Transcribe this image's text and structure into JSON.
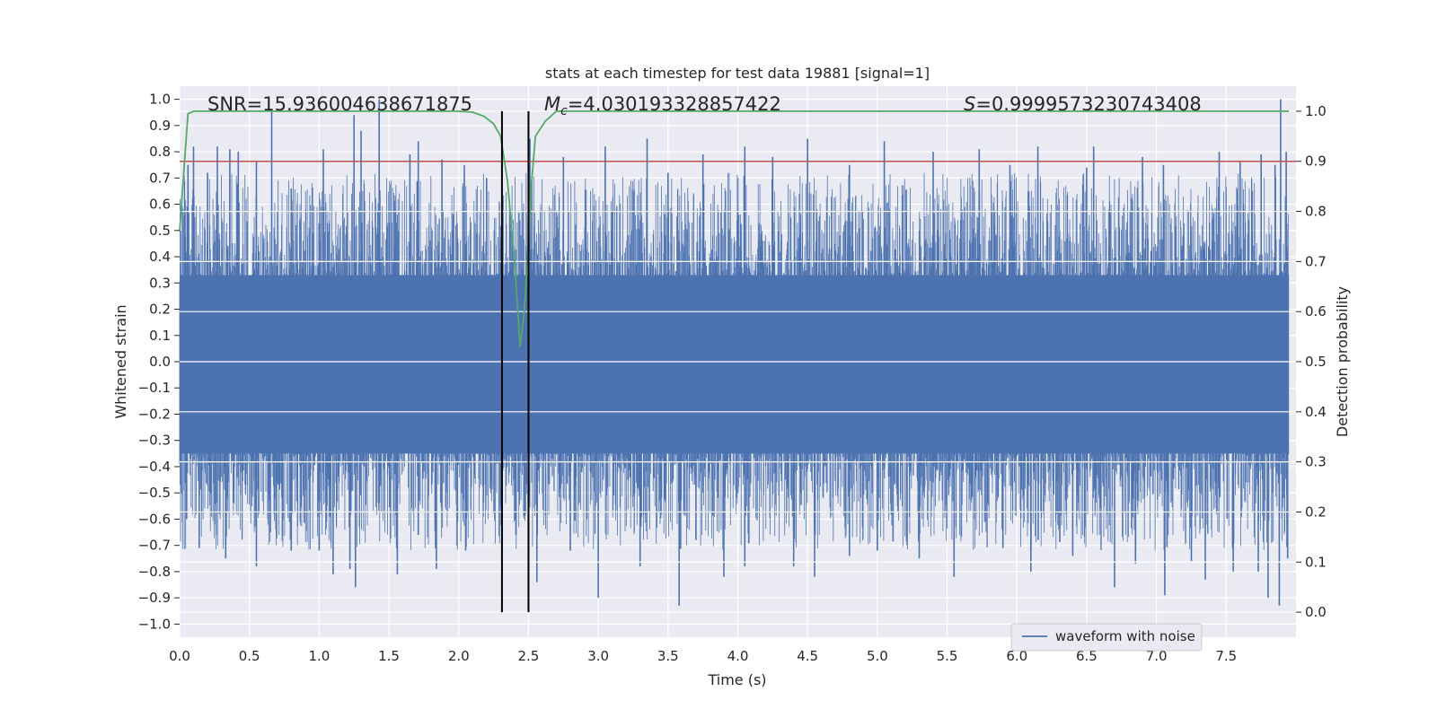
{
  "chart_data": {
    "type": "line",
    "title": "stats at each timestep for test data 19881 [signal=1]",
    "xlabel": "Time (s)",
    "ylabel": "Whitened strain",
    "y2label": "Detection probability",
    "xlim": [
      0.0,
      8.0
    ],
    "ylim": [
      -1.05,
      1.05
    ],
    "y2lim": [
      -0.05,
      1.05
    ],
    "x_ticks": [
      "0.0",
      "0.5",
      "1.0",
      "1.5",
      "2.0",
      "2.5",
      "3.0",
      "3.5",
      "4.0",
      "4.5",
      "5.0",
      "5.5",
      "6.0",
      "6.5",
      "7.0",
      "7.5"
    ],
    "y_ticks": [
      "1.0",
      "0.9",
      "0.8",
      "0.7",
      "0.6",
      "0.5",
      "0.4",
      "0.3",
      "0.2",
      "0.1",
      "0.0",
      "−0.1",
      "−0.2",
      "−0.3",
      "−0.4",
      "−0.5",
      "−0.6",
      "−0.7",
      "−0.8",
      "−0.9",
      "−1.0"
    ],
    "y2_ticks": [
      "1.0",
      "0.9",
      "0.8",
      "0.7",
      "0.6",
      "0.5",
      "0.4",
      "0.3",
      "0.2",
      "0.1",
      "0.0"
    ],
    "grid": true,
    "legend_location": "lower right",
    "annotations": {
      "snr": "SNR=15.936004638671875",
      "mc_symbol": "M",
      "mc_subscript": "c",
      "mc_value": "=4.030193328857422",
      "s_symbol": "S",
      "s_value": "=0.9999573230743408"
    },
    "series": [
      {
        "name": "waveform with noise",
        "color": "#4c72b0",
        "description_of_envelope": "dense noise, max near 1.0, min near -0.93",
        "upper_peaks": [
          [
            0.06,
            0.75
          ],
          [
            0.1,
            0.82
          ],
          [
            0.2,
            0.72
          ],
          [
            0.27,
            0.82
          ],
          [
            0.36,
            0.81
          ],
          [
            0.42,
            0.8
          ],
          [
            0.55,
            0.76
          ],
          [
            0.66,
            0.96
          ],
          [
            0.8,
            0.66
          ],
          [
            1.03,
            0.81
          ],
          [
            1.25,
            0.94
          ],
          [
            1.3,
            0.88
          ],
          [
            1.43,
            1.0
          ],
          [
            1.65,
            0.79
          ],
          [
            1.71,
            0.84
          ],
          [
            1.88,
            0.77
          ],
          [
            2.04,
            0.75
          ],
          [
            2.2,
            0.7
          ],
          [
            2.51,
            0.85
          ],
          [
            2.75,
            0.78
          ],
          [
            3.05,
            0.82
          ],
          [
            3.35,
            0.85
          ],
          [
            3.5,
            0.72
          ],
          [
            3.75,
            0.79
          ],
          [
            4.05,
            0.82
          ],
          [
            4.25,
            0.78
          ],
          [
            4.5,
            0.85
          ],
          [
            4.8,
            0.75
          ],
          [
            5.05,
            0.84
          ],
          [
            5.4,
            0.8
          ],
          [
            5.73,
            0.81
          ],
          [
            5.95,
            0.75
          ],
          [
            6.15,
            0.82
          ],
          [
            6.5,
            0.74
          ],
          [
            6.55,
            0.82
          ],
          [
            6.9,
            0.78
          ],
          [
            7.05,
            0.75
          ],
          [
            7.45,
            0.8
          ],
          [
            7.6,
            0.76
          ],
          [
            7.75,
            0.79
          ],
          [
            7.85,
            0.75
          ],
          [
            7.89,
            1.0
          ],
          [
            7.93,
            0.8
          ]
        ],
        "lower_peaks": [
          [
            0.05,
            -0.6
          ],
          [
            0.14,
            -0.71
          ],
          [
            0.33,
            -0.75
          ],
          [
            0.55,
            -0.78
          ],
          [
            0.65,
            -0.65
          ],
          [
            0.8,
            -0.72
          ],
          [
            1.0,
            -0.72
          ],
          [
            1.1,
            -0.81
          ],
          [
            1.22,
            -0.79
          ],
          [
            1.26,
            -0.86
          ],
          [
            1.56,
            -0.81
          ],
          [
            1.71,
            -0.66
          ],
          [
            1.84,
            -0.79
          ],
          [
            2.05,
            -0.72
          ],
          [
            2.41,
            -0.66
          ],
          [
            2.5,
            -0.72
          ],
          [
            2.56,
            -0.84
          ],
          [
            2.8,
            -0.72
          ],
          [
            3.0,
            -0.9
          ],
          [
            3.3,
            -0.78
          ],
          [
            3.58,
            -0.93
          ],
          [
            3.7,
            -0.68
          ],
          [
            3.9,
            -0.82
          ],
          [
            4.05,
            -0.78
          ],
          [
            4.4,
            -0.78
          ],
          [
            4.55,
            -0.82
          ],
          [
            4.8,
            -0.74
          ],
          [
            5.0,
            -0.72
          ],
          [
            5.3,
            -0.75
          ],
          [
            5.55,
            -0.82
          ],
          [
            5.9,
            -0.71
          ],
          [
            6.1,
            -0.8
          ],
          [
            6.4,
            -0.74
          ],
          [
            6.7,
            -0.86
          ],
          [
            6.85,
            -0.77
          ],
          [
            7.06,
            -0.89
          ],
          [
            7.25,
            -0.76
          ],
          [
            7.35,
            -0.83
          ],
          [
            7.55,
            -0.8
          ],
          [
            7.73,
            -0.8
          ],
          [
            7.8,
            -0.9
          ],
          [
            7.88,
            -0.93
          ],
          [
            7.94,
            -0.75
          ]
        ]
      },
      {
        "name": "detection probability",
        "color": "#55a868",
        "axis": "right",
        "points": [
          [
            0.0,
            0.76
          ],
          [
            0.03,
            0.88
          ],
          [
            0.06,
            0.995
          ],
          [
            0.1,
            1.0
          ],
          [
            0.2,
            1.0
          ],
          [
            1.8,
            1.0
          ],
          [
            2.0,
            1.0
          ],
          [
            2.1,
            0.998
          ],
          [
            2.18,
            0.99
          ],
          [
            2.25,
            0.975
          ],
          [
            2.3,
            0.95
          ],
          [
            2.35,
            0.86
          ],
          [
            2.4,
            0.7
          ],
          [
            2.44,
            0.53
          ],
          [
            2.47,
            0.6
          ],
          [
            2.5,
            0.74
          ],
          [
            2.52,
            0.85
          ],
          [
            2.55,
            0.95
          ],
          [
            2.62,
            0.98
          ],
          [
            2.7,
            1.0
          ],
          [
            2.8,
            1.0
          ],
          [
            7.95,
            1.0
          ]
        ]
      }
    ],
    "threshold_line": {
      "value_y2": 0.9,
      "color": "#c44e52"
    },
    "vertical_markers": {
      "x": [
        2.31,
        2.5
      ],
      "y2_range": [
        0.0,
        1.0
      ],
      "color": "#000000"
    }
  },
  "legend": {
    "label": "waveform with noise"
  }
}
